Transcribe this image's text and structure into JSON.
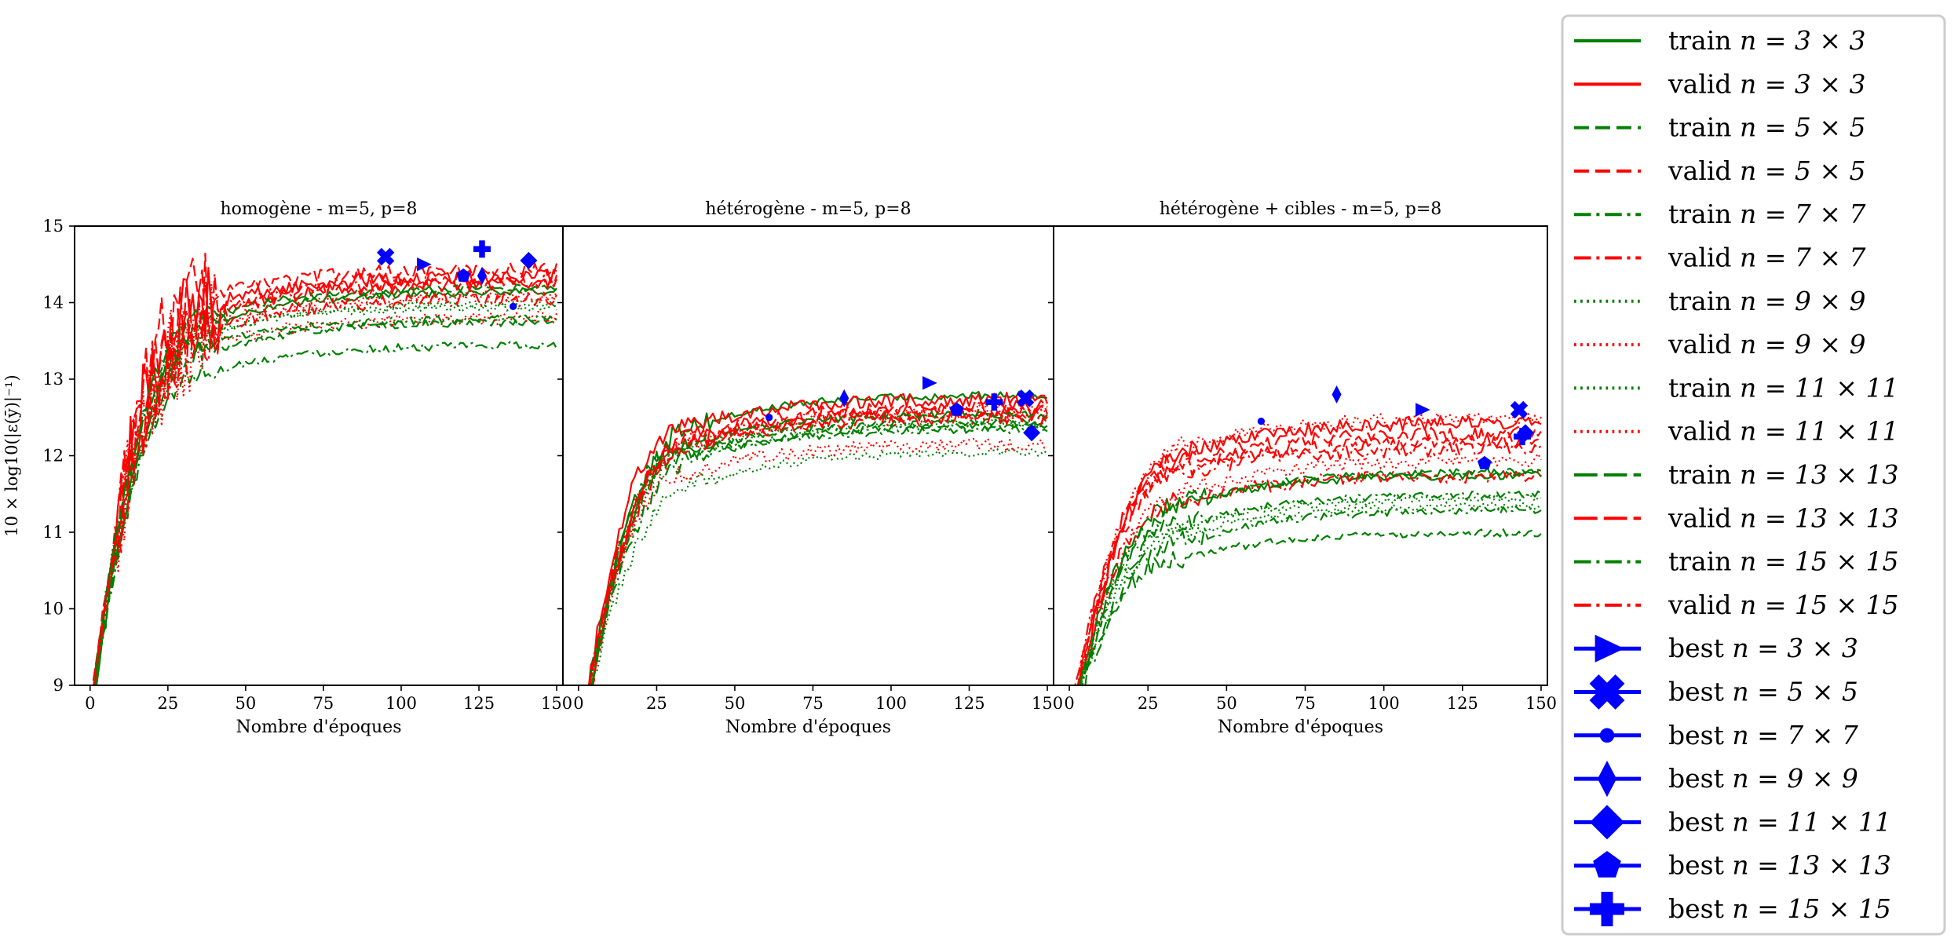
{
  "chart_data": [
    {
      "type": "line",
      "title": "homogène - m=5, p=8",
      "xlabel": "Nombre d'époques",
      "ylabel": "10 × log10(|ε(ȳ)|⁻¹)",
      "xlim": [
        -5,
        152
      ],
      "ylim": [
        9,
        15
      ],
      "xticks": [
        "0",
        "25",
        "50",
        "75",
        "100",
        "125",
        "150"
      ],
      "yticks": [
        "9",
        "10",
        "11",
        "12",
        "13",
        "14",
        "15"
      ],
      "grid": false,
      "series": [
        {
          "name": "train n = 3 × 3",
          "style": "solid",
          "color": "#008000",
          "plateau": 14.15
        },
        {
          "name": "valid n = 3 × 3",
          "style": "solid",
          "color": "#ff0000",
          "plateau": 14.35
        },
        {
          "name": "train n = 5 × 5",
          "style": "dashed",
          "color": "#008000",
          "plateau": 13.75
        },
        {
          "name": "valid n = 5 × 5",
          "style": "dashed",
          "color": "#ff0000",
          "plateau": 14.45
        },
        {
          "name": "train n = 7 × 7",
          "style": "dashdot",
          "color": "#008000",
          "plateau": 13.45
        },
        {
          "name": "valid n = 7 × 7",
          "style": "dashdot",
          "color": "#ff0000",
          "plateau": 14.3
        },
        {
          "name": "train n = 9 × 9",
          "style": "dotted",
          "color": "#008000",
          "plateau": 13.95
        },
        {
          "name": "valid n = 9 × 9",
          "style": "dotted",
          "color": "#ff0000",
          "plateau": 14.1
        },
        {
          "name": "train n = 11 × 11",
          "style": "dotted",
          "color": "#008000",
          "plateau": 14.0
        },
        {
          "name": "valid n = 11 × 11",
          "style": "dotted",
          "color": "#ff0000",
          "plateau": 13.8
        },
        {
          "name": "train n = 13 × 13",
          "style": "longdash",
          "color": "#008000",
          "plateau": 14.2
        },
        {
          "name": "valid n = 13 × 13",
          "style": "longdash",
          "color": "#ff0000",
          "plateau": 14.25
        },
        {
          "name": "train n = 15 × 15",
          "style": "dashdot",
          "color": "#008000",
          "plateau": 13.8
        },
        {
          "name": "valid n = 15 × 15",
          "style": "dashdot",
          "color": "#ff0000",
          "plateau": 14.05
        }
      ],
      "best": [
        {
          "name": "best n = 3 × 3",
          "marker": "triangle-right",
          "x": 107,
          "y": 14.5
        },
        {
          "name": "best n = 5 × 5",
          "marker": "x",
          "x": 95,
          "y": 14.6
        },
        {
          "name": "best n = 7 × 7",
          "marker": "point",
          "x": 136,
          "y": 13.95
        },
        {
          "name": "best n = 9 × 9",
          "marker": "thin-diamond",
          "x": 126,
          "y": 14.35
        },
        {
          "name": "best n = 11 × 11",
          "marker": "diamond",
          "x": 141,
          "y": 14.55
        },
        {
          "name": "best n = 13 × 13",
          "marker": "pentagon",
          "x": 120,
          "y": 14.35
        },
        {
          "name": "best n = 15 × 15",
          "marker": "plus",
          "x": 126,
          "y": 14.7
        }
      ]
    },
    {
      "type": "line",
      "title": "hétérogène - m=5, p=8",
      "xlabel": "Nombre d'époques",
      "ylabel": "",
      "xlim": [
        -5,
        152
      ],
      "ylim": [
        9,
        15
      ],
      "xticks": [
        "0",
        "25",
        "50",
        "75",
        "100",
        "125",
        "150"
      ],
      "yticks": [],
      "grid": false,
      "series": [
        {
          "name": "train n = 3 × 3",
          "style": "solid",
          "color": "#008000",
          "plateau": 12.8
        },
        {
          "name": "valid n = 3 × 3",
          "style": "solid",
          "color": "#ff0000",
          "plateau": 12.75
        },
        {
          "name": "train n = 5 × 5",
          "style": "dashed",
          "color": "#008000",
          "plateau": 12.45
        },
        {
          "name": "valid n = 5 × 5",
          "style": "dashed",
          "color": "#ff0000",
          "plateau": 12.6
        },
        {
          "name": "train n = 7 × 7",
          "style": "dashdot",
          "color": "#008000",
          "plateau": 12.35
        },
        {
          "name": "valid n = 7 × 7",
          "style": "dashdot",
          "color": "#ff0000",
          "plateau": 12.55
        },
        {
          "name": "train n = 9 × 9",
          "style": "dotted",
          "color": "#008000",
          "plateau": 12.05
        },
        {
          "name": "valid n = 9 × 9",
          "style": "dotted",
          "color": "#ff0000",
          "plateau": 12.15
        },
        {
          "name": "train n = 11 × 11",
          "style": "dotted",
          "color": "#008000",
          "plateau": 12.45
        },
        {
          "name": "valid n = 11 × 11",
          "style": "dotted",
          "color": "#ff0000",
          "plateau": 12.6
        },
        {
          "name": "train n = 13 × 13",
          "style": "longdash",
          "color": "#008000",
          "plateau": 12.55
        },
        {
          "name": "valid n = 13 × 13",
          "style": "longdash",
          "color": "#ff0000",
          "plateau": 12.65
        },
        {
          "name": "train n = 15 × 15",
          "style": "dashdot",
          "color": "#008000",
          "plateau": 12.4
        },
        {
          "name": "valid n = 15 × 15",
          "style": "dashdot",
          "color": "#ff0000",
          "plateau": 12.5
        }
      ],
      "best": [
        {
          "name": "best n = 3 × 3",
          "marker": "triangle-right",
          "x": 112,
          "y": 12.95
        },
        {
          "name": "best n = 5 × 5",
          "marker": "x",
          "x": 143,
          "y": 12.75
        },
        {
          "name": "best n = 7 × 7",
          "marker": "point",
          "x": 61,
          "y": 12.5
        },
        {
          "name": "best n = 9 × 9",
          "marker": "thin-diamond",
          "x": 85,
          "y": 12.75
        },
        {
          "name": "best n = 11 × 11",
          "marker": "diamond",
          "x": 145,
          "y": 12.3
        },
        {
          "name": "best n = 13 × 13",
          "marker": "pentagon",
          "x": 121,
          "y": 12.6
        },
        {
          "name": "best n = 15 × 15",
          "marker": "plus",
          "x": 133,
          "y": 12.7
        }
      ]
    },
    {
      "type": "line",
      "title": "hétérogène + cibles - m=5, p=8",
      "xlabel": "Nombre d'époques",
      "ylabel": "",
      "xlim": [
        -5,
        152
      ],
      "ylim": [
        9,
        15
      ],
      "xticks": [
        "0",
        "25",
        "50",
        "75",
        "100",
        "125",
        "150"
      ],
      "yticks": [],
      "grid": false,
      "series": [
        {
          "name": "train n = 3 × 3",
          "style": "solid",
          "color": "#008000",
          "plateau": 11.75
        },
        {
          "name": "valid n = 3 × 3",
          "style": "solid",
          "color": "#ff0000",
          "plateau": 12.45
        },
        {
          "name": "train n = 5 × 5",
          "style": "dashed",
          "color": "#008000",
          "plateau": 11.0
        },
        {
          "name": "valid n = 5 × 5",
          "style": "dashed",
          "color": "#ff0000",
          "plateau": 12.2
        },
        {
          "name": "train n = 7 × 7",
          "style": "dashdot",
          "color": "#008000",
          "plateau": 11.3
        },
        {
          "name": "valid n = 7 × 7",
          "style": "dashdot",
          "color": "#ff0000",
          "plateau": 11.75
        },
        {
          "name": "train n = 9 × 9",
          "style": "dotted",
          "color": "#008000",
          "plateau": 11.35
        },
        {
          "name": "valid n = 9 × 9",
          "style": "dotted",
          "color": "#ff0000",
          "plateau": 11.95
        },
        {
          "name": "train n = 11 × 11",
          "style": "dotted",
          "color": "#008000",
          "plateau": 11.45
        },
        {
          "name": "valid n = 11 × 11",
          "style": "dotted",
          "color": "#ff0000",
          "plateau": 12.5
        },
        {
          "name": "train n = 13 × 13",
          "style": "longdash",
          "color": "#008000",
          "plateau": 11.8
        },
        {
          "name": "valid n = 13 × 13",
          "style": "longdash",
          "color": "#ff0000",
          "plateau": 12.3
        },
        {
          "name": "train n = 15 × 15",
          "style": "dashdot",
          "color": "#008000",
          "plateau": 11.5
        },
        {
          "name": "valid n = 15 × 15",
          "style": "dashdot",
          "color": "#ff0000",
          "plateau": 12.1
        }
      ],
      "best": [
        {
          "name": "best n = 3 × 3",
          "marker": "triangle-right",
          "x": 112,
          "y": 12.6
        },
        {
          "name": "best n = 5 × 5",
          "marker": "x",
          "x": 143,
          "y": 12.6
        },
        {
          "name": "best n = 7 × 7",
          "marker": "point",
          "x": 61,
          "y": 12.45
        },
        {
          "name": "best n = 9 × 9",
          "marker": "thin-diamond",
          "x": 85,
          "y": 12.8
        },
        {
          "name": "best n = 11 × 11",
          "marker": "diamond",
          "x": 145,
          "y": 12.3
        },
        {
          "name": "best n = 13 × 13",
          "marker": "pentagon",
          "x": 132,
          "y": 11.9
        },
        {
          "name": "best n = 15 × 15",
          "marker": "plus",
          "x": 144,
          "y": 12.25
        }
      ]
    }
  ],
  "legend": {
    "placement": "right",
    "entries": [
      {
        "word": "train",
        "math": "n = 3 × 3",
        "kind": "line",
        "style": "solid",
        "color": "#008000"
      },
      {
        "word": "valid",
        "math": "n = 3 × 3",
        "kind": "line",
        "style": "solid",
        "color": "#ff0000"
      },
      {
        "word": "train",
        "math": "n = 5 × 5",
        "kind": "line",
        "style": "dashed",
        "color": "#008000"
      },
      {
        "word": "valid",
        "math": "n = 5 × 5",
        "kind": "line",
        "style": "dashed",
        "color": "#ff0000"
      },
      {
        "word": "train",
        "math": "n = 7 × 7",
        "kind": "line",
        "style": "dashdot",
        "color": "#008000"
      },
      {
        "word": "valid",
        "math": "n = 7 × 7",
        "kind": "line",
        "style": "dashdot",
        "color": "#ff0000"
      },
      {
        "word": "train",
        "math": "n = 9 × 9",
        "kind": "line",
        "style": "dotted",
        "color": "#008000"
      },
      {
        "word": "valid",
        "math": "n = 9 × 9",
        "kind": "line",
        "style": "dotted",
        "color": "#ff0000"
      },
      {
        "word": "train",
        "math": "n = 11 × 11",
        "kind": "line",
        "style": "dotted",
        "color": "#008000"
      },
      {
        "word": "valid",
        "math": "n = 11 × 11",
        "kind": "line",
        "style": "dotted",
        "color": "#ff0000"
      },
      {
        "word": "train",
        "math": "n = 13 × 13",
        "kind": "line",
        "style": "longdash",
        "color": "#008000"
      },
      {
        "word": "valid",
        "math": "n = 13 × 13",
        "kind": "line",
        "style": "longdash",
        "color": "#ff0000"
      },
      {
        "word": "train",
        "math": "n = 15 × 15",
        "kind": "line",
        "style": "dashdot",
        "color": "#008000"
      },
      {
        "word": "valid",
        "math": "n = 15 × 15",
        "kind": "line",
        "style": "dashdot",
        "color": "#ff0000"
      },
      {
        "word": "best",
        "math": "n = 3 × 3",
        "kind": "marker",
        "marker": "triangle-right",
        "color": "#0000ff"
      },
      {
        "word": "best",
        "math": "n = 5 × 5",
        "kind": "marker",
        "marker": "x",
        "color": "#0000ff"
      },
      {
        "word": "best",
        "math": "n = 7 × 7",
        "kind": "marker",
        "marker": "point",
        "color": "#0000ff"
      },
      {
        "word": "best",
        "math": "n = 9 × 9",
        "kind": "marker",
        "marker": "thin-diamond",
        "color": "#0000ff"
      },
      {
        "word": "best",
        "math": "n = 11 × 11",
        "kind": "marker",
        "marker": "diamond",
        "color": "#0000ff"
      },
      {
        "word": "best",
        "math": "n = 13 × 13",
        "kind": "marker",
        "marker": "pentagon",
        "color": "#0000ff"
      },
      {
        "word": "best",
        "math": "n = 15 × 15",
        "kind": "marker",
        "marker": "plus",
        "color": "#0000ff"
      }
    ]
  }
}
